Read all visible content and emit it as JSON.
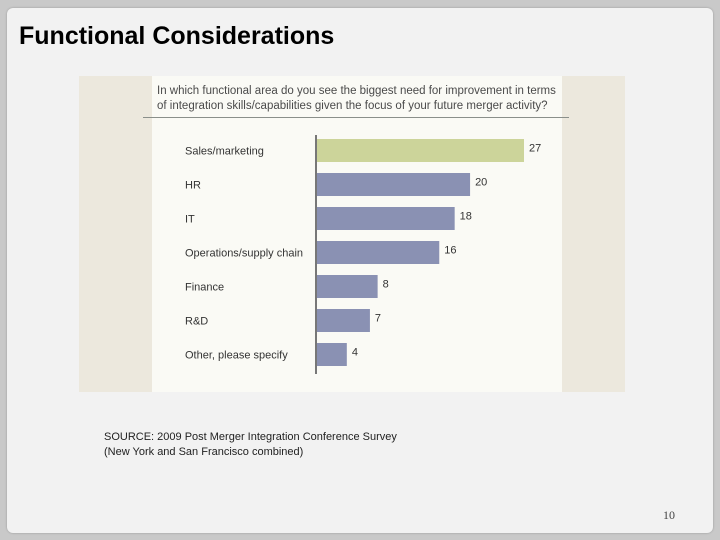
{
  "slide": {
    "title": "Functional Considerations",
    "source_line1": "SOURCE: 2009 Post Merger Integration Conference Survey",
    "source_line2": "(New York and San Francisco combined)",
    "page_number": "10"
  },
  "colors": {
    "highlight_bar": "#ccd49a",
    "bar": "#8a91b3",
    "axis": "#777777"
  },
  "chart_data": {
    "type": "bar",
    "orientation": "horizontal",
    "title": "In which functional area do you see the biggest need for improvement in terms of integration skills/capabilities given the focus of your future merger activity?",
    "categories": [
      "Sales/marketing",
      "HR",
      "IT",
      "Operations/supply chain",
      "Finance",
      "R&D",
      "Other, please specify"
    ],
    "values": [
      27,
      20,
      18,
      16,
      8,
      7,
      4
    ],
    "highlight_index": 0,
    "xlim": [
      0,
      27
    ],
    "grid": false,
    "legend": "none"
  }
}
